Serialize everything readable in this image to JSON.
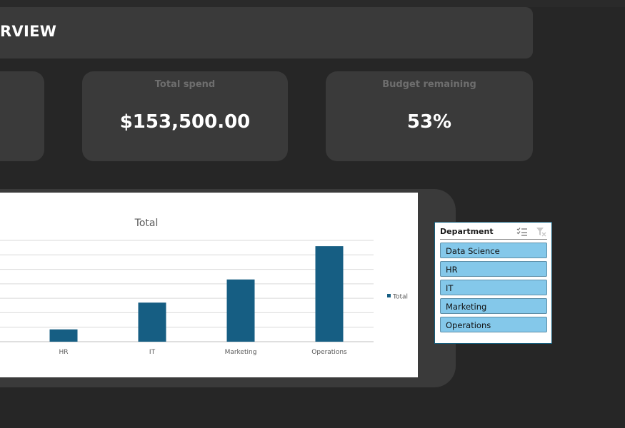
{
  "dashboard": {
    "title": "OVERVIEW",
    "title_visible": "RVIEW"
  },
  "kpis": [
    {
      "label": "Total spend",
      "value": "$153,500.00"
    },
    {
      "label": "Budget remaining",
      "value": "53%"
    }
  ],
  "slicer": {
    "title": "Department",
    "items": [
      {
        "label": "Data Science",
        "selected": true
      },
      {
        "label": "HR",
        "selected": true
      },
      {
        "label": "IT",
        "selected": true
      },
      {
        "label": "Marketing",
        "selected": true
      },
      {
        "label": "Operations",
        "selected": true
      }
    ],
    "icons": [
      "multi-select-icon",
      "clear-filter-icon"
    ]
  },
  "colors": {
    "background": "#262626",
    "card": "#3a3a3a",
    "bar": "#165e83",
    "slicer_item": "#84c8ea"
  },
  "chart_data": {
    "type": "bar",
    "title": "Total",
    "categories": [
      "HR",
      "IT",
      "Marketing",
      "Operations"
    ],
    "series": [
      {
        "name": "Total",
        "values": [
          8500,
          27000,
          43000,
          66000
        ]
      }
    ],
    "ylim": [
      0,
      70000
    ],
    "grid": true,
    "legend": "right"
  }
}
